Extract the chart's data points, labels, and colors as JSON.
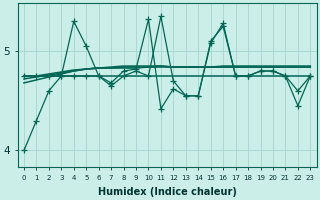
{
  "xlabel": "Humidex (Indice chaleur)",
  "bg_color": "#cceee8",
  "grid_color": "#aad8d2",
  "line_color": "#006655",
  "x": [
    0,
    1,
    2,
    3,
    4,
    5,
    6,
    7,
    8,
    9,
    10,
    11,
    12,
    13,
    14,
    15,
    16,
    17,
    18,
    19,
    20,
    21,
    22,
    23
  ],
  "jagged1": [
    4.0,
    4.3,
    4.6,
    4.75,
    5.3,
    5.05,
    4.75,
    4.65,
    4.75,
    4.8,
    4.75,
    5.35,
    4.7,
    4.55,
    4.55,
    5.1,
    5.25,
    4.75,
    4.75,
    4.8,
    4.8,
    4.75,
    4.6,
    4.75
  ],
  "jagged2": [
    4.75,
    4.75,
    4.75,
    4.75,
    4.75,
    4.75,
    4.75,
    4.68,
    4.8,
    4.82,
    5.32,
    4.42,
    4.62,
    4.55,
    4.55,
    5.08,
    5.28,
    4.75,
    4.75,
    4.8,
    4.8,
    4.75,
    4.45,
    4.75
  ],
  "trend1": [
    4.75,
    4.75,
    4.75,
    4.75,
    4.75,
    4.75,
    4.75,
    4.75,
    4.75,
    4.75,
    4.75,
    4.75,
    4.75,
    4.75,
    4.75,
    4.75,
    4.75,
    4.75,
    4.75,
    4.75,
    4.75,
    4.75,
    4.75,
    4.75
  ],
  "trend2": [
    4.72,
    4.74,
    4.76,
    4.78,
    4.8,
    4.82,
    4.83,
    4.84,
    4.85,
    4.85,
    4.85,
    4.85,
    4.84,
    4.84,
    4.84,
    4.84,
    4.84,
    4.84,
    4.84,
    4.84,
    4.84,
    4.84,
    4.84,
    4.84
  ],
  "trend3": [
    4.68,
    4.71,
    4.74,
    4.77,
    4.8,
    4.82,
    4.83,
    4.83,
    4.84,
    4.84,
    4.84,
    4.85,
    4.84,
    4.84,
    4.84,
    4.84,
    4.85,
    4.85,
    4.85,
    4.85,
    4.85,
    4.85,
    4.85,
    4.85
  ],
  "trend4": [
    4.75,
    4.75,
    4.77,
    4.79,
    4.81,
    4.82,
    4.83,
    4.83,
    4.83,
    4.83,
    4.84,
    4.84,
    4.84,
    4.84,
    4.84,
    4.84,
    4.84,
    4.84,
    4.84,
    4.84,
    4.84,
    4.84,
    4.84,
    4.84
  ],
  "ylim": [
    3.83,
    5.48
  ],
  "yticks": [
    4.0,
    5.0
  ],
  "xticks": [
    0,
    1,
    2,
    3,
    4,
    5,
    6,
    7,
    8,
    9,
    10,
    11,
    12,
    13,
    14,
    15,
    16,
    17,
    18,
    19,
    20,
    21,
    22,
    23
  ]
}
